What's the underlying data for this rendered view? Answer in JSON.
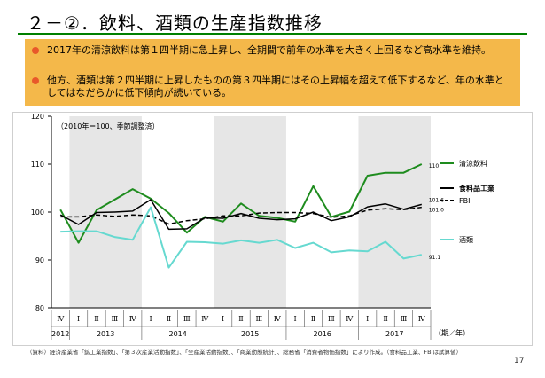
{
  "title": "２－②．飲料、酒類の生産指数推移",
  "summary": [
    "2017年の清涼飲料は第１四半期に急上昇し、全期間で前年の水準を大きく上回るなど高水準を維持。",
    "他方、酒類は第２四半期に上昇したものの第３四半期にはその上昇幅を超えて低下するなど、年の水準としてはなだらかに低下傾向が続いている。"
  ],
  "footnote": "（資料）経済産業省「鉱工業指数」、「第３次産業活動指数」、「全産業活動指数」、「商業動態統計」、総務省「消費者物価指数」により作成。（食料品工業、FBIは試算値）",
  "page_number": "17",
  "colors": {
    "title_rule": "#008000",
    "summary_bg": "#f4b84a",
    "bullet": "#e8582a",
    "shade": "#e6e6e6"
  },
  "chart_data": {
    "type": "line",
    "note": "（2010年＝100、季節調整済）",
    "ylim": [
      80,
      120
    ],
    "yticks": [
      "80",
      "90",
      "100",
      "110",
      "120"
    ],
    "quarters": [
      "Ⅳ",
      "Ⅰ",
      "Ⅱ",
      "Ⅲ",
      "Ⅳ",
      "Ⅰ",
      "Ⅱ",
      "Ⅲ",
      "Ⅳ",
      "Ⅰ",
      "Ⅱ",
      "Ⅲ",
      "Ⅳ",
      "Ⅰ",
      "Ⅱ",
      "Ⅲ",
      "Ⅳ",
      "Ⅰ",
      "Ⅱ",
      "Ⅲ",
      "Ⅳ"
    ],
    "years": [
      {
        "label": "2012",
        "from": 0,
        "to": 0
      },
      {
        "label": "2013",
        "from": 1,
        "to": 4
      },
      {
        "label": "2014",
        "from": 5,
        "to": 8
      },
      {
        "label": "2015",
        "from": 9,
        "to": 12
      },
      {
        "label": "2016",
        "from": 13,
        "to": 16
      },
      {
        "label": "2017",
        "from": 17,
        "to": 20
      }
    ],
    "shaded_years": [
      1,
      3,
      5
    ],
    "axis_unit": "（期／年）",
    "series": [
      {
        "name": "清涼飲料",
        "color": "#1e8c1e",
        "dash": "",
        "width": 2,
        "bold": false,
        "end_label": "110",
        "values": [
          100.5,
          93.6,
          100.4,
          102.6,
          104.8,
          102.8,
          99.8,
          95.7,
          99.0,
          98.0,
          101.8,
          99.2,
          98.8,
          98.0,
          105.4,
          99.0,
          100.1,
          107.6,
          108.2,
          108.2,
          110.0
        ]
      },
      {
        "name": "食料品工業",
        "color": "#000000",
        "dash": "",
        "width": 1.5,
        "bold": true,
        "end_label": "101.6",
        "values": [
          99.4,
          97.4,
          99.9,
          100.0,
          100.2,
          102.6,
          96.4,
          96.5,
          98.8,
          98.7,
          99.7,
          98.7,
          98.4,
          98.6,
          100.0,
          98.2,
          99.0,
          101.1,
          101.7,
          100.6,
          101.6
        ]
      },
      {
        "name": "FBI",
        "color": "#000000",
        "dash": "5,3",
        "width": 1.5,
        "bold": false,
        "end_label": "101.0",
        "values": [
          99.0,
          99.0,
          99.4,
          99.1,
          99.4,
          99.2,
          97.5,
          98.2,
          98.6,
          99.2,
          99.2,
          99.8,
          99.9,
          99.9,
          99.7,
          98.9,
          99.2,
          100.4,
          100.7,
          100.5,
          101.0
        ]
      },
      {
        "name": "酒類",
        "color": "#66d9d0",
        "dash": "",
        "width": 2,
        "bold": false,
        "end_label": "91.1",
        "values": [
          95.9,
          96.0,
          96.0,
          94.8,
          94.2,
          101.0,
          88.4,
          93.8,
          93.7,
          93.4,
          94.1,
          93.6,
          94.2,
          92.5,
          93.6,
          91.6,
          92.0,
          91.8,
          93.8,
          90.3,
          91.1
        ]
      }
    ]
  }
}
